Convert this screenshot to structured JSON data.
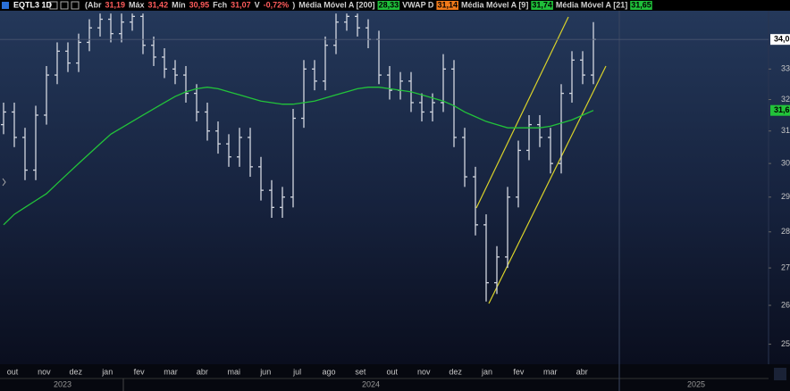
{
  "chart_data": {
    "type": "candlestick",
    "title": "EQTL3 1D",
    "info": [
      {
        "text": "(Abr",
        "color": "#d0d0d0"
      },
      {
        "text": "31,19",
        "color": "#ff5c5c"
      },
      {
        "text": "Máx",
        "color": "#d0d0d0"
      },
      {
        "text": "31,42",
        "color": "#ff5c5c"
      },
      {
        "text": "Mín",
        "color": "#d0d0d0"
      },
      {
        "text": "30,95",
        "color": "#ff5c5c"
      },
      {
        "text": "Fch",
        "color": "#d0d0d0"
      },
      {
        "text": "31,07",
        "color": "#ff5c5c"
      },
      {
        "text": "V",
        "color": "#d0d0d0"
      },
      {
        "text": "-0,72%",
        "color": "#ff5c5c"
      },
      {
        "text": ")",
        "color": "#d0d0d0"
      },
      {
        "text": "Média Móvel A [200]",
        "color": "#d0d0d0"
      },
      {
        "text": "28,33",
        "color": "#1fbf3a",
        "box": true
      },
      {
        "text": "VWAP D",
        "color": "#d0d0d0"
      },
      {
        "text": "31,14",
        "color": "#f07a1a",
        "box": true
      },
      {
        "text": "Média Móvel A [9]",
        "color": "#d0d0d0"
      },
      {
        "text": "31,74",
        "color": "#1fbf3a",
        "box": true
      },
      {
        "text": "Média Móvel A [21]",
        "color": "#d0d0d0"
      },
      {
        "text": "31,65",
        "color": "#1fbf3a",
        "box": true
      }
    ],
    "open": [
      31.2,
      31.6,
      30.8,
      29.8,
      31.5,
      32.8,
      33.6,
      33.2,
      33.9,
      34.4,
      34.7,
      34.2,
      34.6,
      34.8,
      33.8,
      33.4,
      33.0,
      32.8,
      32.2,
      31.6,
      31.0,
      30.6,
      30.2,
      30.8,
      29.9,
      29.2,
      28.7,
      29.0,
      31.4,
      33.0,
      32.6,
      33.8,
      34.6,
      34.8,
      34.4,
      34.0,
      32.8,
      32.3,
      32.6,
      31.9,
      31.6,
      31.9,
      33.0,
      30.8,
      29.6,
      28.2,
      26.6,
      27.3,
      29.0,
      30.4,
      31.2,
      30.8,
      30.0,
      32.2,
      33.3,
      32.8
    ],
    "high": [
      31.9,
      31.9,
      31.1,
      31.8,
      33.1,
      33.9,
      33.9,
      34.2,
      34.7,
      34.9,
      34.9,
      34.9,
      34.9,
      34.9,
      34.1,
      33.7,
      33.3,
      33.1,
      32.5,
      31.9,
      31.3,
      30.9,
      31.1,
      31.1,
      30.2,
      29.5,
      29.3,
      31.7,
      33.3,
      33.3,
      34.1,
      34.9,
      34.9,
      34.9,
      34.7,
      34.3,
      33.1,
      32.9,
      32.9,
      32.2,
      32.2,
      33.5,
      33.3,
      31.1,
      29.9,
      28.5,
      27.6,
      29.3,
      30.7,
      31.5,
      31.5,
      31.1,
      32.5,
      33.6,
      33.6,
      34.6
    ],
    "low": [
      30.9,
      30.5,
      29.5,
      29.5,
      31.2,
      32.5,
      32.9,
      32.9,
      33.6,
      34.1,
      33.9,
      33.9,
      34.3,
      33.5,
      33.1,
      32.7,
      32.5,
      31.9,
      31.3,
      30.7,
      30.3,
      29.9,
      29.9,
      29.6,
      28.9,
      28.4,
      28.4,
      28.7,
      31.1,
      32.3,
      32.3,
      33.5,
      34.3,
      34.1,
      33.7,
      32.5,
      32.0,
      32.0,
      31.6,
      31.3,
      31.3,
      31.6,
      30.5,
      29.3,
      27.9,
      26.1,
      26.3,
      27.0,
      28.7,
      30.1,
      30.5,
      29.7,
      29.7,
      31.9,
      32.5,
      32.5
    ],
    "close": [
      31.6,
      30.8,
      29.8,
      31.5,
      32.8,
      33.6,
      33.2,
      33.9,
      34.4,
      34.7,
      34.2,
      34.6,
      34.8,
      33.8,
      33.4,
      33.0,
      32.8,
      32.2,
      31.6,
      31.0,
      30.6,
      30.2,
      30.8,
      29.9,
      29.2,
      28.7,
      29.0,
      31.4,
      33.0,
      32.6,
      33.8,
      34.6,
      34.8,
      34.4,
      34.0,
      32.8,
      32.3,
      32.6,
      31.9,
      31.6,
      31.9,
      33.0,
      30.8,
      29.6,
      28.2,
      26.6,
      27.3,
      29.0,
      30.4,
      31.2,
      30.8,
      30.0,
      32.2,
      33.3,
      32.8,
      34.0
    ],
    "color": "#d3d7e0",
    "moving_average": {
      "color": "#22c33a",
      "values": [
        28.2,
        28.5,
        28.7,
        28.9,
        29.1,
        29.4,
        29.7,
        30.0,
        30.3,
        30.6,
        30.9,
        31.1,
        31.3,
        31.5,
        31.7,
        31.9,
        32.1,
        32.25,
        32.35,
        32.4,
        32.35,
        32.25,
        32.15,
        32.05,
        31.95,
        31.9,
        31.85,
        31.85,
        31.9,
        31.95,
        32.05,
        32.15,
        32.25,
        32.35,
        32.4,
        32.4,
        32.35,
        32.3,
        32.25,
        32.15,
        32.05,
        31.95,
        31.8,
        31.6,
        31.45,
        31.3,
        31.2,
        31.1,
        31.1,
        31.1,
        31.1,
        31.15,
        31.25,
        31.35,
        31.5,
        31.65
      ]
    },
    "price_tags": [
      {
        "value": 34.0,
        "label": "34,0",
        "color": "#ffffff"
      },
      {
        "value": 31.65,
        "label": "31,6",
        "color": "#22c33a"
      }
    ],
    "log_scale": true,
    "ylim": [
      24.5,
      35.0
    ],
    "yticks": [
      {
        "value": 25,
        "label": "25,"
      },
      {
        "value": 26,
        "label": "26,"
      },
      {
        "value": 27,
        "label": "27,"
      },
      {
        "value": 28,
        "label": "28,"
      },
      {
        "value": 29,
        "label": "29,"
      },
      {
        "value": 30,
        "label": "30,"
      },
      {
        "value": 31,
        "label": "31,"
      },
      {
        "value": 32,
        "label": "32,"
      },
      {
        "value": 33,
        "label": "33,"
      }
    ],
    "months": [
      "out",
      "nov",
      "dez",
      "jan",
      "fev",
      "mar",
      "abr",
      "mai",
      "jun",
      "jul",
      "ago",
      "set",
      "out",
      "nov",
      "dez",
      "jan",
      "fev",
      "mar",
      "abr"
    ],
    "years": [
      "2023",
      "2024",
      "2025"
    ]
  }
}
